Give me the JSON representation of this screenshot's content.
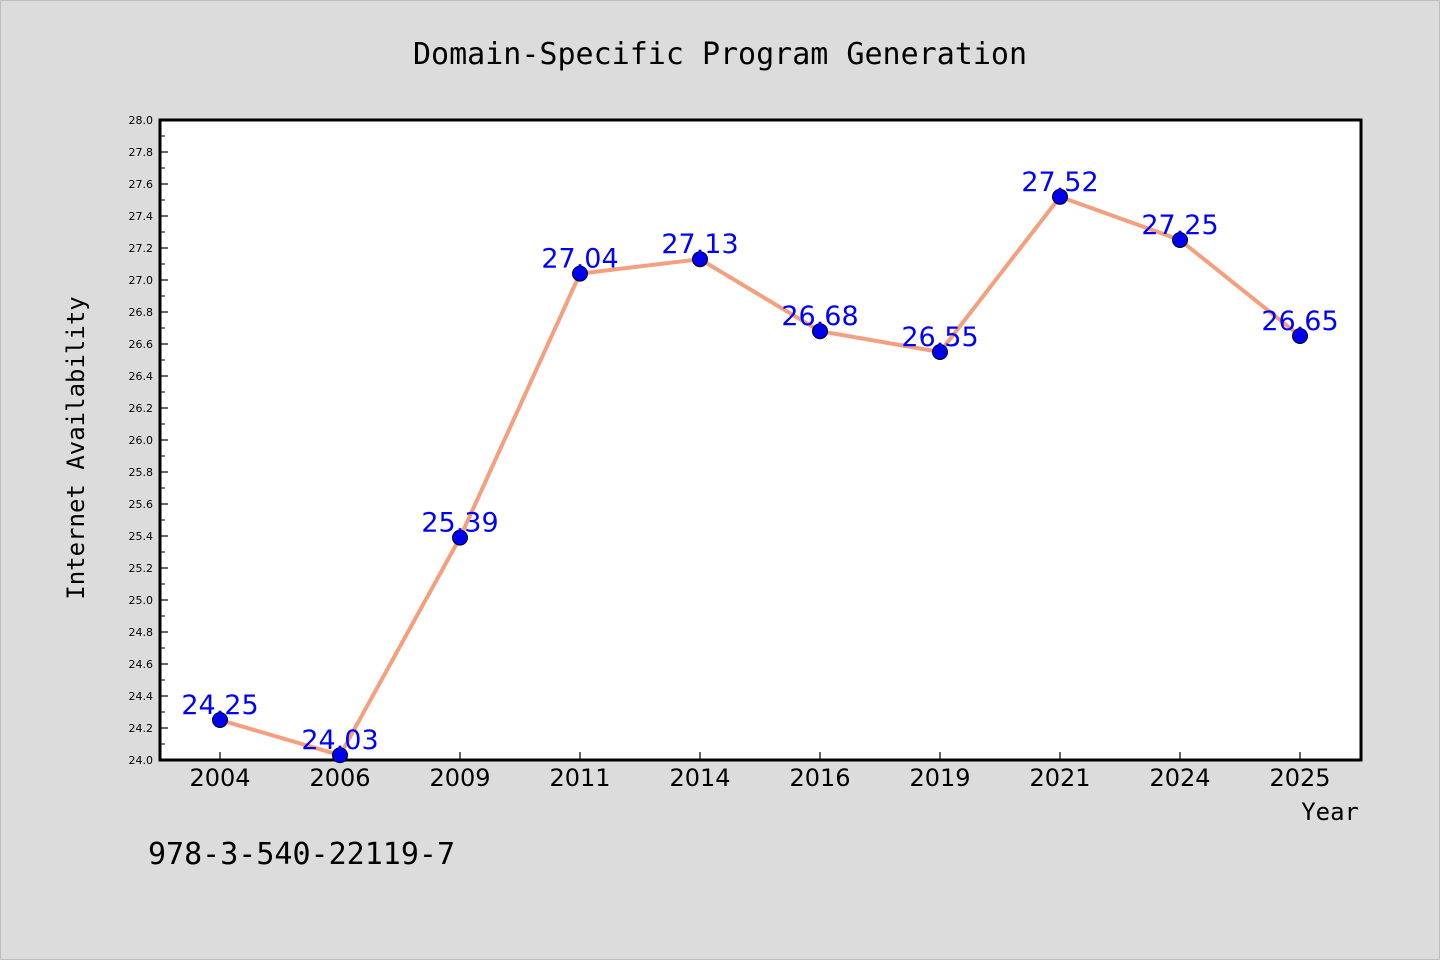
{
  "chart_data": {
    "type": "line",
    "title": "Domain-Specific Program Generation",
    "xlabel": "Year",
    "ylabel": "Internet Availability",
    "categories": [
      "2004",
      "2006",
      "2009",
      "2011",
      "2014",
      "2016",
      "2019",
      "2021",
      "2024",
      "2025"
    ],
    "series": [
      {
        "values": [
          24.25,
          24.03,
          25.39,
          27.04,
          27.13,
          26.68,
          26.55,
          27.52,
          27.25,
          26.65
        ],
        "labels": [
          "24.25",
          "24.03",
          "25.39",
          "27.04",
          "27.13",
          "26.68",
          "26.55",
          "27.52",
          "27.25",
          "26.65"
        ],
        "line_color": "#f4a07e",
        "marker_color": "#0000ee",
        "label_color": "#0000ff"
      }
    ],
    "ylim": [
      24.0,
      28.0
    ],
    "yticks": [
      "24.0",
      "24.2",
      "24.4",
      "24.6",
      "24.8",
      "25.0",
      "25.2",
      "25.4",
      "25.6",
      "25.8",
      "26.0",
      "26.2",
      "26.4",
      "26.6",
      "26.8",
      "27.0",
      "27.2",
      "27.4",
      "27.6",
      "27.8",
      "28.0"
    ],
    "grid": false,
    "legend": "none"
  },
  "annotation": "978-3-540-22119-7",
  "colors": {
    "background": "#dcdcdc",
    "plot_background": "#ffffff",
    "axes": "#000000"
  }
}
